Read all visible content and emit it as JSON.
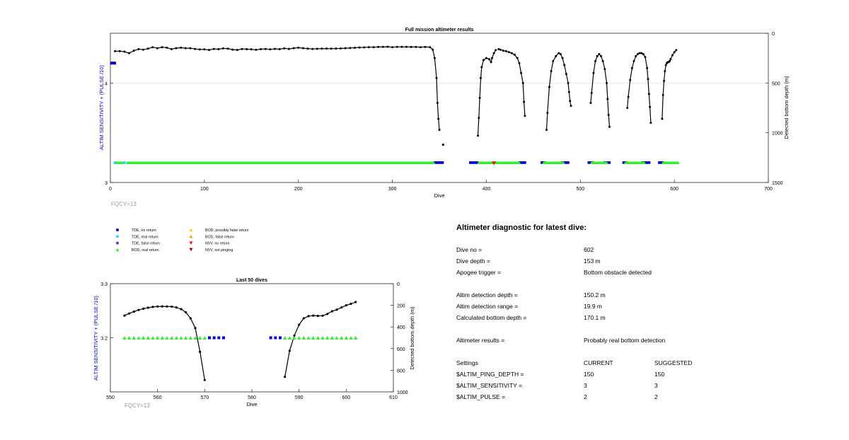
{
  "colors": {
    "depth_line": "#000000",
    "tde_no_return": "#0000cc",
    "tde_real_return": "#33ccff",
    "tde_false_return": "#6633cc",
    "bod_real_return": "#33ee33",
    "bod_possibly_false_return": "#ffcc00",
    "bod_false_return": "#ff9900",
    "nvv_no_return": "#dd2200",
    "nvv_not_pinging": "#880000",
    "left_axis_label": "#0000cc",
    "fqcy": "#999999"
  },
  "chart_data": [
    {
      "id": "full_mission",
      "type": "scatter",
      "title": "Full mission altimeter results",
      "xlabel": "Dive",
      "ylabel_left": "ALTIM SENSITIVITY + (PULSE /10)",
      "ylabel_right": "Detected bottom depth (m)",
      "xlim": [
        0,
        700
      ],
      "xticks": [
        "0",
        "100",
        "200",
        "300",
        "400",
        "500",
        "600",
        "700"
      ],
      "ylim_left": [
        3,
        4.5
      ],
      "yticks_left": [
        "3",
        "4"
      ],
      "ylim_right": [
        1500,
        0
      ],
      "yticks_right": [
        "0",
        "500",
        "1000",
        "1500"
      ],
      "grid": true,
      "annotation": "FQCY=13",
      "setting_segment": {
        "x": [
          0,
          6
        ],
        "y": 4.2
      },
      "depth_segments": [
        [
          [
            5,
            180
          ],
          [
            10,
            180
          ],
          [
            15,
            185
          ],
          [
            20,
            200
          ],
          [
            25,
            175
          ],
          [
            30,
            160
          ],
          [
            35,
            165
          ],
          [
            40,
            155
          ],
          [
            45,
            140
          ],
          [
            50,
            150
          ],
          [
            55,
            140
          ],
          [
            60,
            145
          ],
          [
            65,
            160
          ],
          [
            70,
            150
          ],
          [
            75,
            145
          ],
          [
            80,
            150
          ],
          [
            85,
            150
          ],
          [
            90,
            158
          ],
          [
            95,
            163
          ],
          [
            100,
            162
          ],
          [
            105,
            168
          ],
          [
            110,
            158
          ],
          [
            115,
            160
          ],
          [
            120,
            152
          ],
          [
            125,
            155
          ],
          [
            130,
            164
          ],
          [
            135,
            168
          ],
          [
            140,
            158
          ],
          [
            145,
            160
          ],
          [
            150,
            162
          ],
          [
            155,
            166
          ],
          [
            160,
            160
          ],
          [
            165,
            158
          ],
          [
            170,
            162
          ],
          [
            175,
            157
          ],
          [
            180,
            160
          ],
          [
            185,
            152
          ],
          [
            190,
            158
          ],
          [
            195,
            150
          ],
          [
            200,
            145
          ],
          [
            205,
            150
          ],
          [
            210,
            155
          ],
          [
            215,
            158
          ],
          [
            220,
            156
          ],
          [
            225,
            155
          ],
          [
            230,
            154
          ],
          [
            235,
            155
          ],
          [
            240,
            154
          ],
          [
            245,
            153
          ],
          [
            250,
            150
          ],
          [
            255,
            148
          ],
          [
            260,
            146
          ],
          [
            265,
            143
          ],
          [
            270,
            142
          ],
          [
            275,
            140
          ],
          [
            280,
            140
          ],
          [
            285,
            138
          ],
          [
            290,
            137
          ],
          [
            295,
            136
          ],
          [
            300,
            140
          ],
          [
            305,
            137
          ],
          [
            310,
            137
          ],
          [
            315,
            137
          ],
          [
            320,
            138
          ],
          [
            325,
            138
          ],
          [
            330,
            140
          ],
          [
            335,
            138
          ],
          [
            340,
            140
          ],
          [
            343,
            165
          ],
          [
            345,
            250
          ],
          [
            347,
            450
          ],
          [
            348,
            700
          ],
          [
            349,
            860
          ],
          [
            350,
            970
          ]
        ],
        [
          [
            391,
            1030
          ],
          [
            392,
            850
          ],
          [
            393,
            650
          ],
          [
            394,
            450
          ],
          [
            395,
            340
          ],
          [
            397,
            270
          ],
          [
            400,
            250
          ],
          [
            403,
            260
          ],
          [
            405,
            290
          ],
          [
            406,
            250
          ],
          [
            408,
            200
          ],
          [
            410,
            170
          ]
        ],
        [
          [
            413,
            160
          ],
          [
            415,
            165
          ],
          [
            418,
            175
          ],
          [
            421,
            180
          ],
          [
            424,
            190
          ],
          [
            427,
            200
          ],
          [
            430,
            215
          ],
          [
            433,
            250
          ],
          [
            435,
            300
          ],
          [
            437,
            400
          ],
          [
            439,
            500
          ],
          [
            440,
            690
          ],
          [
            441,
            830
          ]
        ],
        [
          [
            464,
            970
          ],
          [
            465,
            800
          ],
          [
            467,
            540
          ],
          [
            469,
            380
          ],
          [
            471,
            280
          ],
          [
            474,
            230
          ],
          [
            477,
            200
          ],
          [
            479,
            210
          ],
          [
            481,
            250
          ],
          [
            483,
            320
          ],
          [
            485,
            410
          ],
          [
            487,
            500
          ],
          [
            488,
            590
          ],
          [
            489,
            680
          ],
          [
            490,
            730
          ]
        ],
        [
          [
            511,
            700
          ],
          [
            512,
            600
          ],
          [
            514,
            400
          ],
          [
            516,
            280
          ],
          [
            518,
            230
          ],
          [
            520,
            210
          ],
          [
            522,
            230
          ],
          [
            524,
            280
          ],
          [
            526,
            360
          ],
          [
            528,
            500
          ],
          [
            529,
            660
          ],
          [
            530,
            820
          ],
          [
            531,
            940
          ]
        ],
        [
          [
            550,
            750
          ],
          [
            551,
            640
          ],
          [
            553,
            470
          ],
          [
            555,
            350
          ],
          [
            557,
            280
          ],
          [
            559,
            230
          ],
          [
            561,
            210
          ],
          [
            563,
            200
          ],
          [
            565,
            200
          ],
          [
            567,
            210
          ],
          [
            569,
            240
          ],
          [
            571,
            350
          ],
          [
            572,
            460
          ],
          [
            573,
            610
          ],
          [
            574,
            740
          ],
          [
            575,
            900
          ]
        ],
        [
          [
            587,
            860
          ],
          [
            588,
            620
          ],
          [
            589,
            480
          ],
          [
            590,
            380
          ],
          [
            591,
            320
          ],
          [
            592,
            300
          ],
          [
            593,
            290
          ],
          [
            594,
            290
          ],
          [
            595,
            280
          ],
          [
            596,
            260
          ],
          [
            598,
            220
          ],
          [
            600,
            190
          ],
          [
            602,
            170
          ]
        ]
      ],
      "isolated_points": [
        [
          354,
          1120
        ]
      ],
      "markers": {
        "y": 3.2,
        "bod_real_ranges": [
          [
            5,
            13
          ],
          [
            18,
            344
          ],
          [
            392,
            435
          ],
          [
            461,
            482
          ],
          [
            512,
            528
          ],
          [
            548,
            568
          ],
          [
            588,
            604
          ]
        ],
        "tde_no_return_ranges": [
          [
            345,
            354
          ],
          [
            383,
            391
          ],
          [
            435,
            441
          ],
          [
            459,
            462
          ],
          [
            481,
            488
          ],
          [
            509,
            513
          ],
          [
            526,
            532
          ],
          [
            546,
            549
          ],
          [
            566,
            574
          ],
          [
            584,
            588
          ]
        ],
        "tde_real_points": [
          5,
          15
        ],
        "nvv_no_return_points": [
          408
        ]
      }
    },
    {
      "id": "last_50_dives",
      "type": "scatter",
      "title": "Last 50 dives",
      "xlabel": "Dive",
      "ylabel_left": "ALTIM SENSITIVITY + (PULSE /10)",
      "ylabel_right": "Detected bottom depth (m)",
      "xlim": [
        550,
        610
      ],
      "xticks": [
        "550",
        "560",
        "570",
        "580",
        "590",
        "600",
        "610"
      ],
      "ylim_left": [
        3.1,
        3.3
      ],
      "yticks_left": [
        "3.2",
        "3.3"
      ],
      "ylim_right": [
        1000,
        0
      ],
      "yticks_right": [
        "0",
        "200",
        "400",
        "600",
        "800",
        "1000"
      ],
      "grid": false,
      "annotation": "FQCY=13",
      "depth_segments": [
        [
          [
            553,
            295
          ],
          [
            554,
            275
          ],
          [
            555,
            258
          ],
          [
            556,
            243
          ],
          [
            557,
            231
          ],
          [
            558,
            222
          ],
          [
            559,
            215
          ],
          [
            560,
            211
          ],
          [
            561,
            210
          ],
          [
            562,
            211
          ],
          [
            563,
            212
          ],
          [
            564,
            220
          ],
          [
            565,
            235
          ],
          [
            566,
            265
          ],
          [
            567,
            320
          ],
          [
            568,
            410
          ],
          [
            569,
            630
          ],
          [
            570,
            890
          ]
        ],
        [
          [
            587,
            860
          ],
          [
            588,
            620
          ],
          [
            589,
            480
          ],
          [
            590,
            380
          ],
          [
            591,
            320
          ],
          [
            592,
            300
          ],
          [
            593,
            295
          ],
          [
            594,
            298
          ],
          [
            595,
            296
          ],
          [
            596,
            280
          ],
          [
            597,
            255
          ],
          [
            598,
            240
          ],
          [
            599,
            220
          ],
          [
            600,
            200
          ],
          [
            601,
            186
          ],
          [
            602,
            170
          ]
        ]
      ],
      "markers": {
        "y": 3.2,
        "bod_real_points": [
          553,
          554,
          555,
          556,
          557,
          558,
          559,
          560,
          561,
          562,
          563,
          564,
          565,
          566,
          567,
          568,
          569,
          570,
          587,
          588,
          589,
          590,
          591,
          592,
          593,
          594,
          595,
          596,
          597,
          598,
          599,
          600,
          601,
          602
        ],
        "tde_no_return_points": [
          571,
          572,
          573,
          574,
          584,
          585,
          586
        ]
      }
    }
  ],
  "legend": [
    {
      "label": "TDE, no return",
      "marker": "square",
      "color_key": "tde_no_return"
    },
    {
      "label": "TDE, real return",
      "marker": "square",
      "color_key": "tde_real_return"
    },
    {
      "label": "TDE, false return",
      "marker": "square",
      "color_key": "tde_false_return"
    },
    {
      "label": "BOD, real return",
      "marker": "triangle-up",
      "color_key": "bod_real_return"
    },
    {
      "label": "BOD, possibly false return",
      "marker": "triangle-up",
      "color_key": "bod_possibly_false_return"
    },
    {
      "label": "BOD, false return",
      "marker": "triangle-up",
      "color_key": "bod_false_return"
    },
    {
      "label": "NVV, no return",
      "marker": "triangle-down",
      "color_key": "nvv_no_return"
    },
    {
      "label": "NVV, not pinging",
      "marker": "triangle-down",
      "color_key": "nvv_not_pinging"
    }
  ],
  "diagnostic": {
    "title": "Altimeter diagnostic for latest dive:",
    "dive_no_label": "Dive no =",
    "dive_no_value": "602",
    "dive_depth_label": "Dive depth =",
    "dive_depth_value": "153 m",
    "apogee_label": "Apogee trigger =",
    "apogee_value": "Bottom obstacle detected",
    "altim_detect_depth_label": "Altim detection depth =",
    "altim_detect_depth_value": "150.2 m",
    "altim_detect_range_label": "Altim detection range =",
    "altim_detect_range_value": "19.9 m",
    "calc_bottom_label": "Calculated bottom depth =",
    "calc_bottom_value": "170.1 m",
    "results_label": "Altimeter results =",
    "results_value": "Probably real bottom detection",
    "settings_label": "Settings",
    "current_label": "CURRENT",
    "suggested_label": "SUGGESTED",
    "ping_depth_label": "$ALTIM_PING_DEPTH =",
    "ping_depth_current": "150",
    "ping_depth_suggested": "150",
    "sensitivity_label": "$ALTIM_SENSITIVITY =",
    "sensitivity_current": "3",
    "sensitivity_suggested": "3",
    "pulse_label": "$ALTIM_PULSE =",
    "pulse_current": "2",
    "pulse_suggested": "2"
  }
}
